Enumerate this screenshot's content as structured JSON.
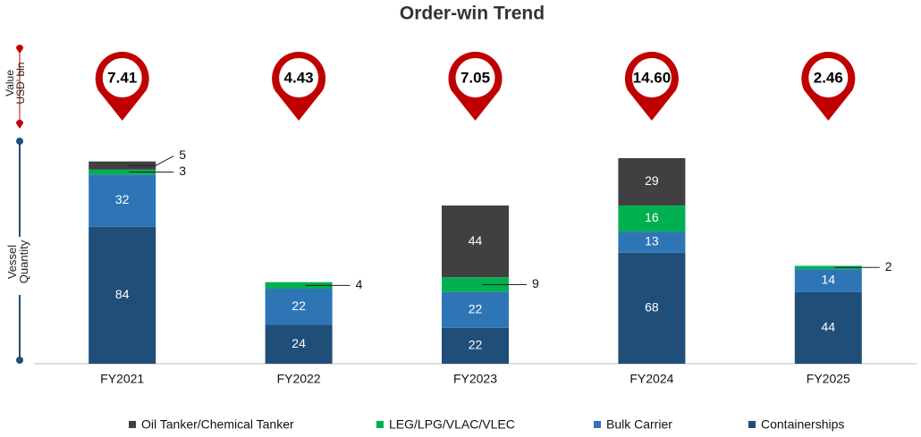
{
  "chart_data": {
    "type": "stacked-bar",
    "title": "Order-win Trend",
    "value_axis_label": "Value USD' bln",
    "quantity_axis_label": "Vessel Quantity",
    "categories": [
      "FY2021",
      "FY2022",
      "FY2023",
      "FY2024",
      "FY2025"
    ],
    "order_value": {
      "values": [
        7.41,
        4.43,
        7.05,
        14.6,
        2.46
      ],
      "value_labels": [
        "7.41",
        "4.43",
        "7.05",
        "14.60",
        "2.46"
      ],
      "color": "#c00000"
    },
    "series": [
      {
        "name": "Oil Tanker/Chemical Tanker",
        "color": "#404040",
        "values": [
          5,
          null,
          44,
          29,
          null
        ]
      },
      {
        "name": "LEG/LPG/VLAC/VLEC",
        "color": "#00b050",
        "values": [
          3,
          4,
          9,
          16,
          2
        ]
      },
      {
        "name": "Bulk Carrier",
        "color": "#2e75b6",
        "values": [
          32,
          22,
          22,
          13,
          14
        ]
      },
      {
        "name": "Containerships",
        "color": "#1f4e79",
        "values": [
          84,
          24,
          22,
          68,
          44
        ]
      }
    ]
  }
}
